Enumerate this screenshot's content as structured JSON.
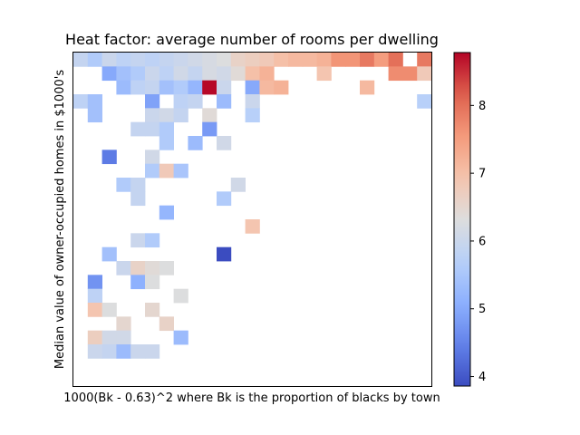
{
  "chart_data": {
    "type": "heatmap",
    "title": "Heat factor: average number of rooms per dwelling",
    "xlabel": "1000(Bk - 0.63)^2 where Bk is the proportion of blacks by town",
    "ylabel": "Median value of owner-occupied homes in $1000's",
    "colormap": "coolwarm",
    "colorbar": {
      "min": 3.86,
      "max": 8.78,
      "ticks": [
        4,
        5,
        6,
        7,
        8
      ]
    },
    "grid": false,
    "rows": 24,
    "cols": 25,
    "cells": [
      [
        0,
        0,
        5.9
      ],
      [
        0,
        1,
        5.6
      ],
      [
        0,
        2,
        6.0
      ],
      [
        0,
        3,
        5.8
      ],
      [
        0,
        4,
        5.9
      ],
      [
        0,
        5,
        5.8
      ],
      [
        0,
        6,
        5.9
      ],
      [
        0,
        7,
        6.0
      ],
      [
        0,
        8,
        6.1
      ],
      [
        0,
        9,
        6.2
      ],
      [
        0,
        10,
        6.3
      ],
      [
        0,
        11,
        6.6
      ],
      [
        0,
        12,
        6.7
      ],
      [
        0,
        13,
        6.8
      ],
      [
        0,
        14,
        7.0
      ],
      [
        0,
        15,
        7.1
      ],
      [
        0,
        16,
        7.1
      ],
      [
        0,
        17,
        7.2
      ],
      [
        0,
        18,
        7.6
      ],
      [
        0,
        19,
        7.6
      ],
      [
        0,
        20,
        7.9
      ],
      [
        0,
        21,
        7.5
      ],
      [
        0,
        22,
        8.0
      ],
      [
        0,
        24,
        7.9
      ],
      [
        1,
        2,
        5.0
      ],
      [
        1,
        3,
        5.4
      ],
      [
        1,
        4,
        5.6
      ],
      [
        1,
        5,
        6.0
      ],
      [
        1,
        6,
        5.8
      ],
      [
        1,
        7,
        6.1
      ],
      [
        1,
        8,
        5.9
      ],
      [
        1,
        9,
        6.2
      ],
      [
        1,
        10,
        6.1
      ],
      [
        1,
        11,
        6.4
      ],
      [
        1,
        12,
        7.0
      ],
      [
        1,
        13,
        7.2
      ],
      [
        1,
        17,
        6.9
      ],
      [
        1,
        22,
        7.7
      ],
      [
        1,
        23,
        7.7
      ],
      [
        1,
        24,
        6.8
      ],
      [
        2,
        3,
        5.3
      ],
      [
        2,
        4,
        5.8
      ],
      [
        2,
        5,
        5.9
      ],
      [
        2,
        6,
        5.4
      ],
      [
        2,
        7,
        5.6
      ],
      [
        2,
        8,
        5.2
      ],
      [
        2,
        9,
        8.75
      ],
      [
        2,
        10,
        6.0
      ],
      [
        2,
        12,
        5.0
      ],
      [
        2,
        13,
        7.1
      ],
      [
        2,
        14,
        7.2
      ],
      [
        2,
        20,
        7.1
      ],
      [
        3,
        0,
        5.8
      ],
      [
        3,
        1,
        5.4
      ],
      [
        3,
        5,
        4.9
      ],
      [
        3,
        7,
        5.8
      ],
      [
        3,
        8,
        5.9
      ],
      [
        3,
        10,
        5.3
      ],
      [
        3,
        12,
        6.0
      ],
      [
        3,
        24,
        5.7
      ],
      [
        4,
        1,
        5.4
      ],
      [
        4,
        5,
        6.0
      ],
      [
        4,
        6,
        6.1
      ],
      [
        4,
        7,
        5.9
      ],
      [
        4,
        9,
        6.4
      ],
      [
        4,
        12,
        5.7
      ],
      [
        5,
        4,
        5.9
      ],
      [
        5,
        5,
        5.9
      ],
      [
        5,
        6,
        5.6
      ],
      [
        5,
        9,
        4.8
      ],
      [
        6,
        6,
        5.6
      ],
      [
        6,
        8,
        5.3
      ],
      [
        6,
        10,
        6.1
      ],
      [
        7,
        2,
        4.4
      ],
      [
        7,
        5,
        6.1
      ],
      [
        8,
        5,
        5.6
      ],
      [
        8,
        6,
        6.8
      ],
      [
        8,
        7,
        5.5
      ],
      [
        9,
        3,
        5.6
      ],
      [
        9,
        4,
        5.9
      ],
      [
        9,
        11,
        6.1
      ],
      [
        10,
        4,
        5.9
      ],
      [
        10,
        10,
        5.6
      ],
      [
        11,
        6,
        5.2
      ],
      [
        12,
        12,
        6.9
      ],
      [
        13,
        4,
        6.0
      ],
      [
        13,
        5,
        5.6
      ],
      [
        14,
        2,
        5.4
      ],
      [
        14,
        10,
        3.86
      ],
      [
        15,
        3,
        6.0
      ],
      [
        15,
        4,
        6.6
      ],
      [
        15,
        5,
        6.4
      ],
      [
        15,
        6,
        6.3
      ],
      [
        16,
        1,
        4.7
      ],
      [
        16,
        4,
        5.1
      ],
      [
        16,
        5,
        6.3
      ],
      [
        17,
        1,
        5.8
      ],
      [
        17,
        7,
        6.3
      ],
      [
        18,
        1,
        6.9
      ],
      [
        18,
        2,
        6.3
      ],
      [
        18,
        5,
        6.5
      ],
      [
        19,
        3,
        6.5
      ],
      [
        19,
        6,
        6.6
      ],
      [
        20,
        1,
        6.7
      ],
      [
        20,
        2,
        6.1
      ],
      [
        20,
        3,
        6.1
      ],
      [
        20,
        7,
        5.3
      ],
      [
        21,
        1,
        6.0
      ],
      [
        21,
        2,
        5.9
      ],
      [
        21,
        3,
        5.3
      ],
      [
        21,
        4,
        6.0
      ],
      [
        21,
        5,
        6.0
      ]
    ]
  }
}
